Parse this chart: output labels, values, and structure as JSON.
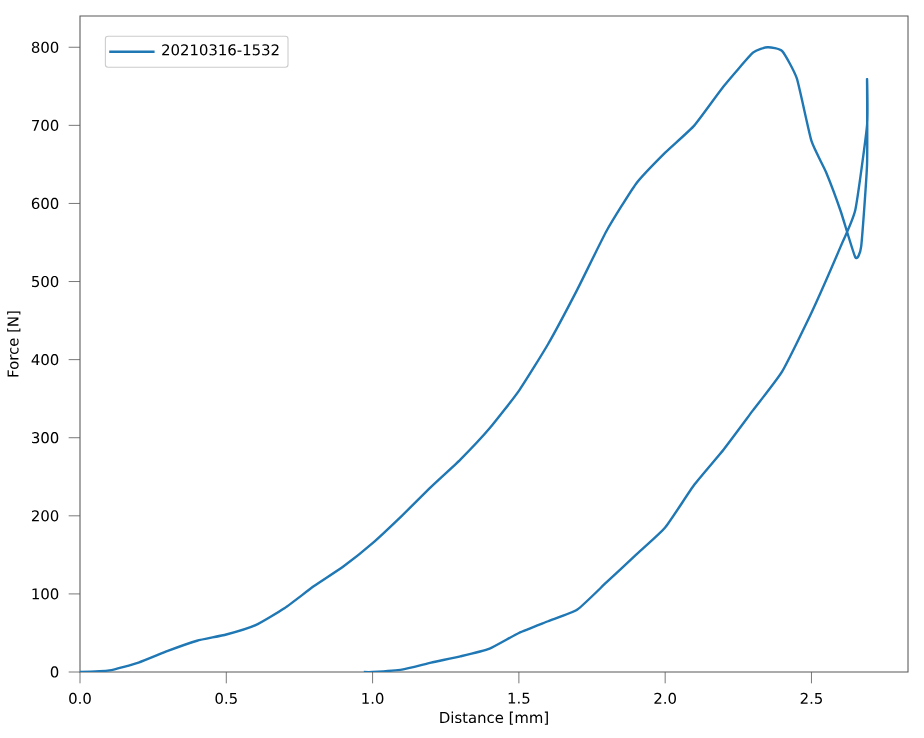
{
  "chart_data": {
    "type": "line",
    "xlabel": "Distance [mm]",
    "ylabel": "Force [N]",
    "xlim": [
      0,
      2.83
    ],
    "ylim": [
      0,
      840
    ],
    "xticks": [
      {
        "value": 0,
        "label": "0.0"
      },
      0.5,
      {
        "value": 1,
        "label": "1.0"
      },
      1.5,
      {
        "value": 2,
        "label": "2.0"
      },
      2.5
    ],
    "yticks": [
      0,
      100,
      200,
      300,
      400,
      500,
      600,
      700,
      800
    ],
    "legend": "top left",
    "grid": false,
    "marker": "none",
    "line_style": "solid",
    "series": [
      {
        "name": "20210316-1532",
        "color": "#1f77b4",
        "x": [
          0,
          0.1,
          0.2,
          0.3,
          0.4,
          0.5,
          0.6,
          0.7,
          0.8,
          0.9,
          1.0,
          1.1,
          1.2,
          1.3,
          1.4,
          1.5,
          1.6,
          1.7,
          1.8,
          1.9,
          2.0,
          2.1,
          2.2,
          2.3,
          2.35,
          2.4,
          2.45,
          2.5,
          2.55,
          2.6,
          2.65,
          2.67,
          2.69,
          2.69,
          2.69,
          2.65,
          2.6,
          2.5,
          2.4,
          2.3,
          2.2,
          2.1,
          2.0,
          1.9,
          1.8,
          1.7,
          1.6,
          1.5,
          1.4,
          1.3,
          1.2,
          1.1,
          1.0,
          0.97
        ],
        "values": [
          0,
          2,
          12,
          27,
          40,
          48,
          60,
          82,
          110,
          135,
          165,
          200,
          237,
          272,
          312,
          360,
          420,
          490,
          565,
          625,
          665,
          700,
          750,
          793,
          800,
          795,
          760,
          680,
          640,
          590,
          531,
          545,
          650,
          759,
          700,
          592,
          545,
          460,
          385,
          335,
          285,
          240,
          185,
          150,
          115,
          80,
          65,
          50,
          30,
          20,
          12,
          3,
          0,
          0
        ]
      }
    ]
  }
}
